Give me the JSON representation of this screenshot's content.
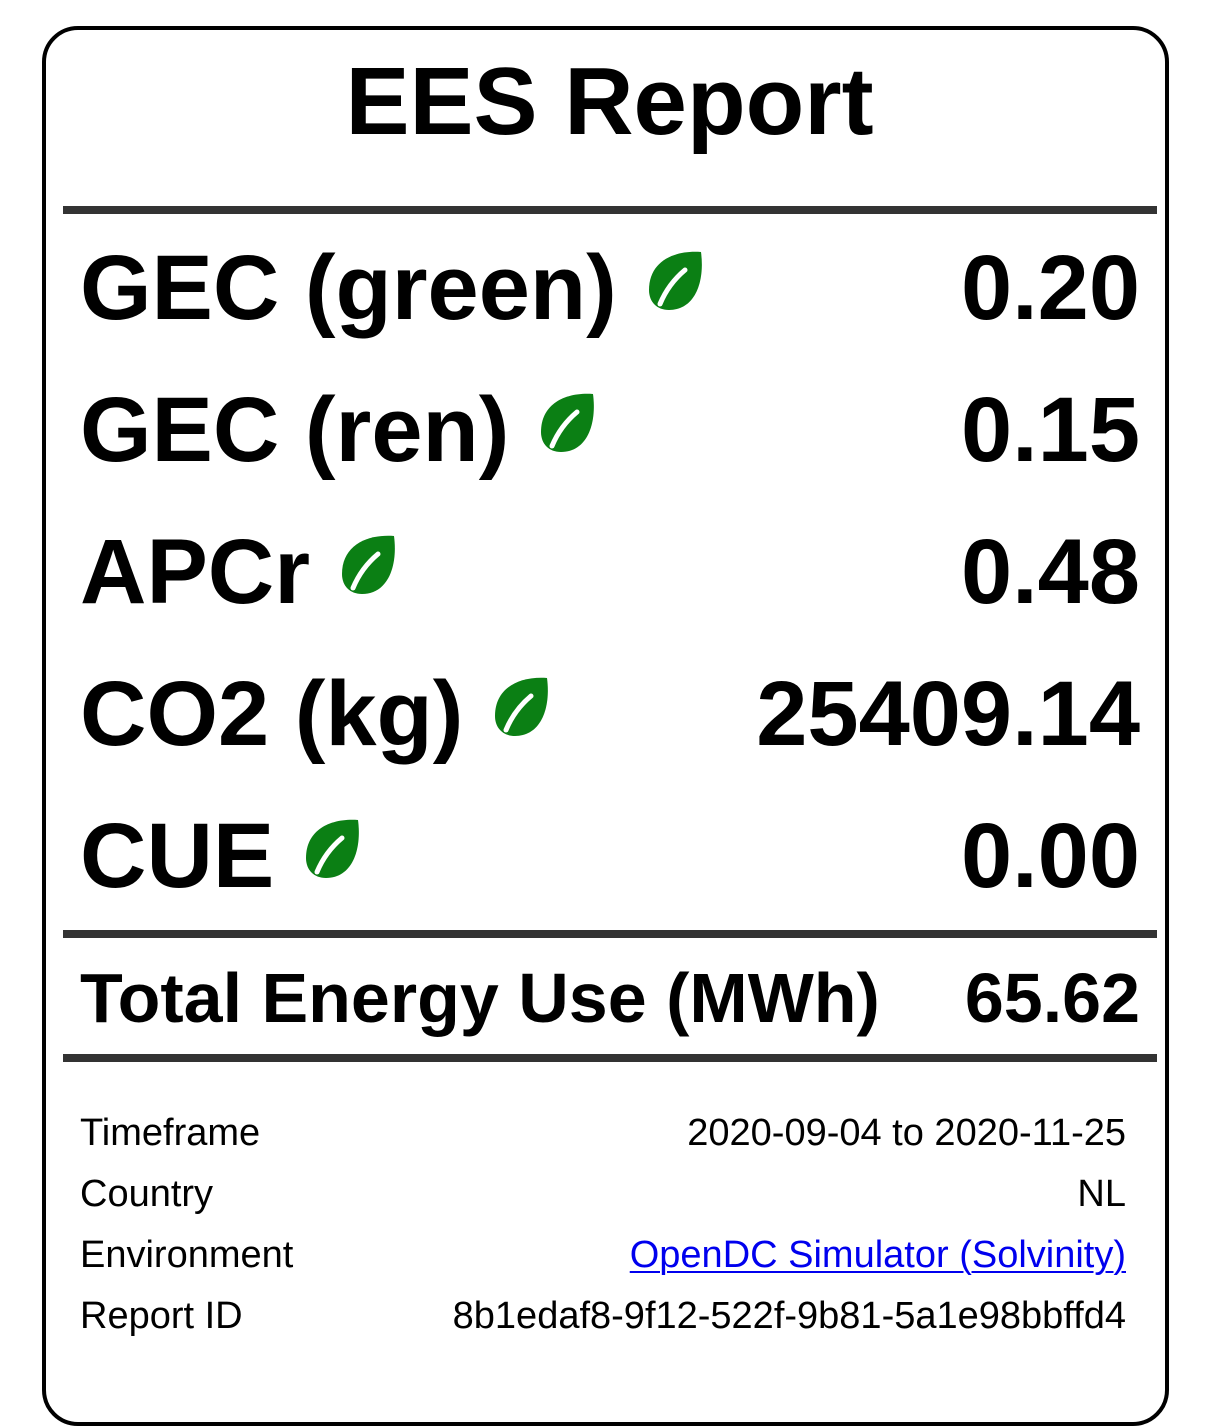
{
  "report": {
    "title": "EES Report",
    "accent_color": "#0b7f14",
    "link_color": "#0000ee",
    "metrics": [
      {
        "label": "GEC (green)",
        "icon": "leaf-icon",
        "value": "0.20"
      },
      {
        "label": "GEC (ren)",
        "icon": "leaf-icon",
        "value": "0.15"
      },
      {
        "label": "APCr",
        "icon": "leaf-icon",
        "value": "0.48"
      },
      {
        "label": "CO2 (kg)",
        "icon": "leaf-icon",
        "value": "25409.14"
      },
      {
        "label": "CUE",
        "icon": "leaf-icon",
        "value": "0.00"
      }
    ],
    "total": {
      "label": "Total Energy Use (MWh)",
      "value": "65.62"
    },
    "info": {
      "timeframe": {
        "label": "Timeframe",
        "value": "2020-09-04 to 2020-11-25"
      },
      "country": {
        "label": "Country",
        "value": "NL"
      },
      "environment": {
        "label": "Environment",
        "value": "OpenDC Simulator (Solvinity)"
      },
      "report_id": {
        "label": "Report ID",
        "value": "8b1edaf8-9f12-522f-9b81-5a1e98bbffd4"
      }
    }
  }
}
